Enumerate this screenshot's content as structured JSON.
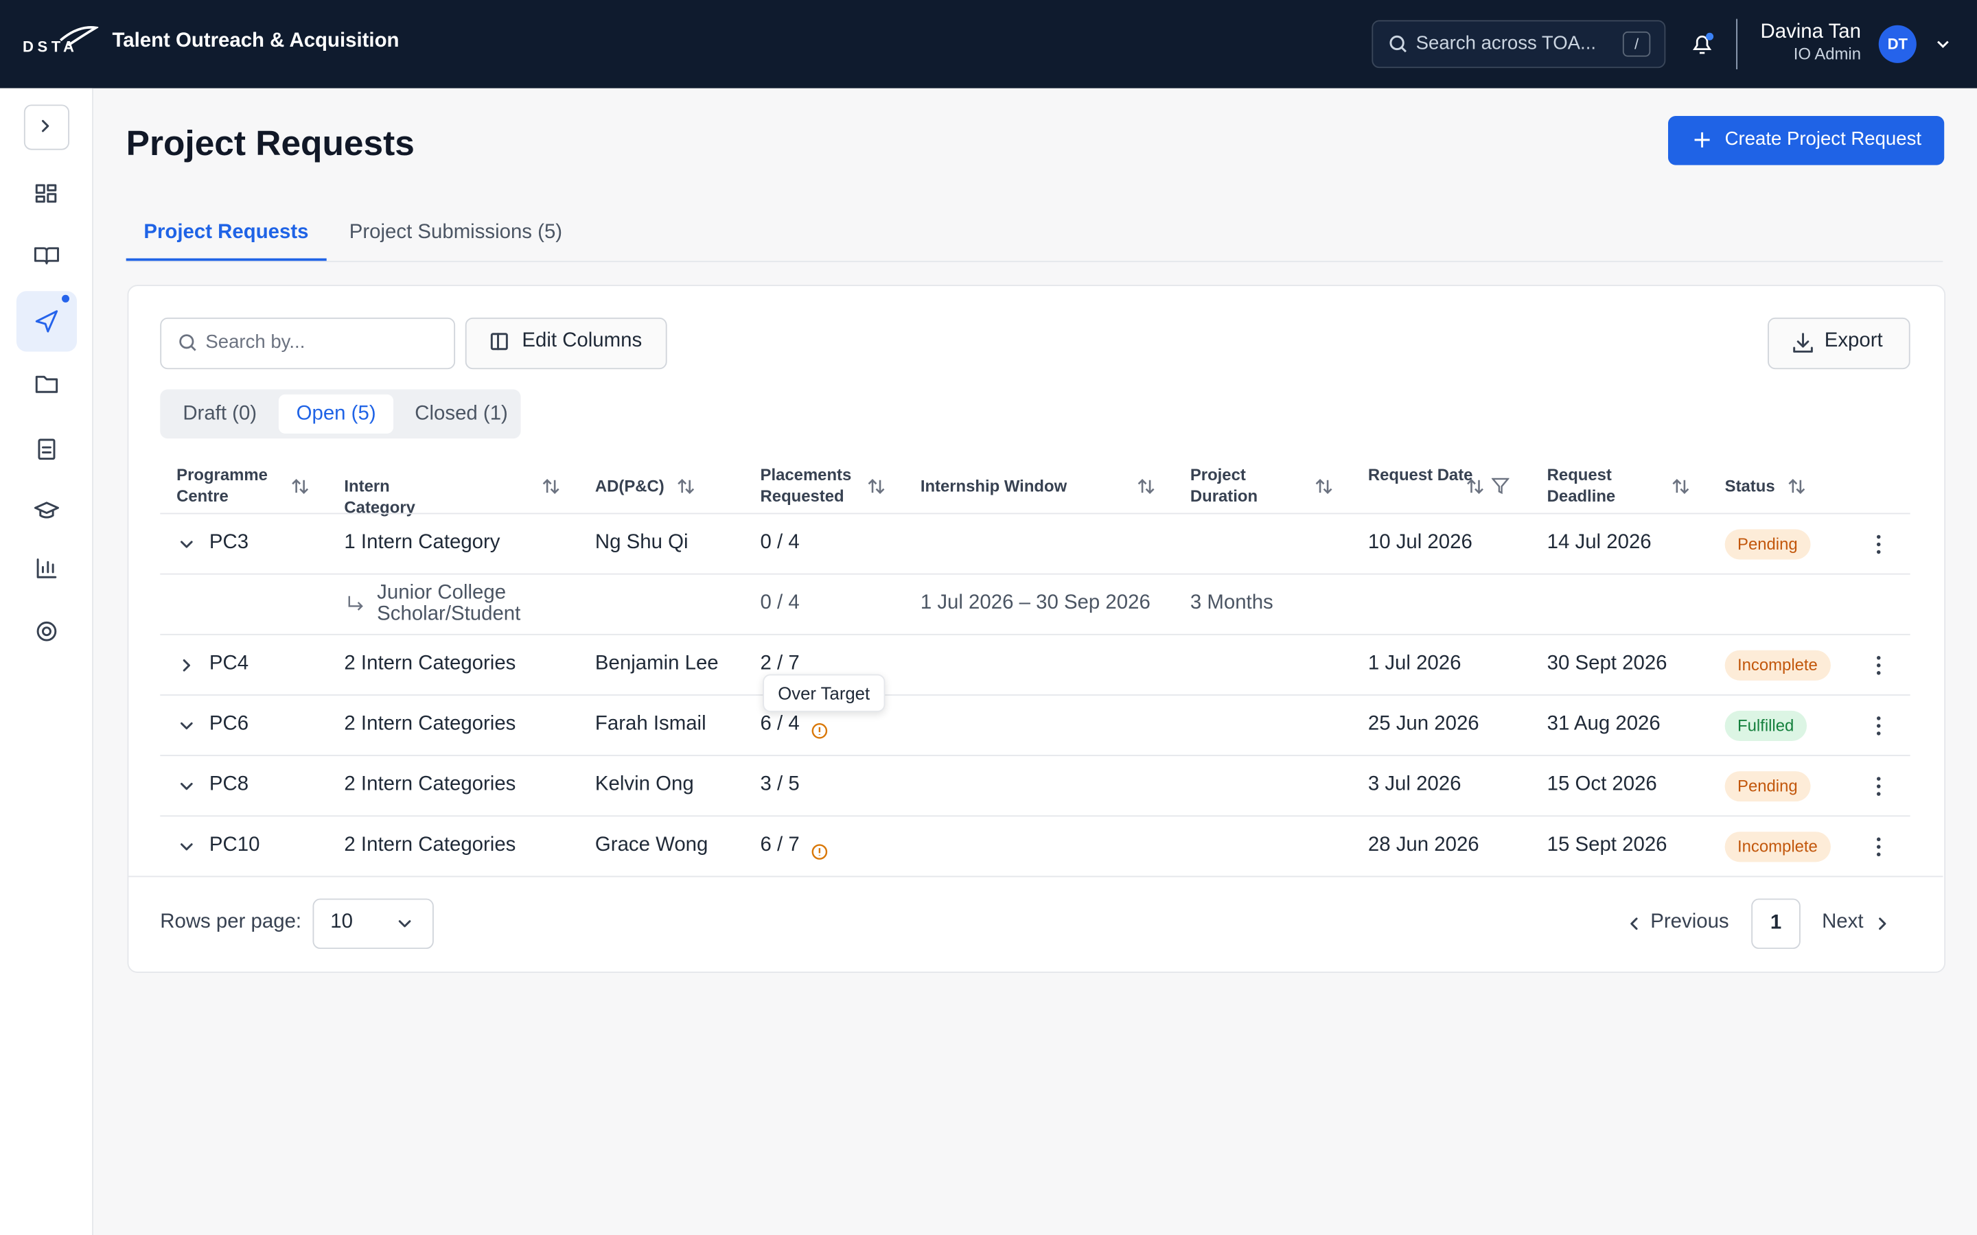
{
  "header": {
    "logo": "DSTA",
    "app_title": "Talent Outreach & Acquisition",
    "search_placeholder": "Search across TOA...",
    "search_shortcut": "/",
    "user_name": "Davina Tan",
    "user_role": "IO Admin",
    "user_initials": "DT"
  },
  "page": {
    "title": "Project Requests",
    "create_button": "Create Project Request"
  },
  "tabs": [
    {
      "label": "Project Requests",
      "active": true
    },
    {
      "label": "Project Submissions (5)",
      "active": false
    }
  ],
  "toolbar": {
    "search_placeholder": "Search by...",
    "edit_columns": "Edit Columns",
    "export": "Export"
  },
  "filters": [
    {
      "label": "Draft (0)",
      "active": false
    },
    {
      "label": "Open (5)",
      "active": true
    },
    {
      "label": "Closed (1)",
      "active": false
    }
  ],
  "table": {
    "columns": [
      {
        "label": "Programme Centre",
        "filter": false
      },
      {
        "label": "Intern Category",
        "filter": false
      },
      {
        "label": "AD(P&C)",
        "filter": false
      },
      {
        "label": "Placements Requested",
        "filter": false
      },
      {
        "label": "Internship Window",
        "filter": false
      },
      {
        "label": "Project Duration",
        "filter": false
      },
      {
        "label": "Request Date",
        "filter": true
      },
      {
        "label": "Request Deadline",
        "filter": false
      },
      {
        "label": "Status",
        "filter": false
      }
    ],
    "rows": [
      {
        "expanded": true,
        "warning": false,
        "cells": [
          "PC3",
          "1 Intern Category",
          "Ng Shu Qi",
          "0 / 4",
          null,
          null,
          "10 Jul 2026",
          "14 Jul 2026"
        ],
        "status": {
          "label": "Pending",
          "tone": "amber"
        },
        "children": [
          {
            "cells": [
              null,
              "Junior College Scholar/Student",
              null,
              "0 / 4",
              "1 Jul 2026 – 30 Sep 2026",
              "3 Months",
              null,
              null
            ]
          }
        ]
      },
      {
        "expanded": false,
        "warning": false,
        "cells": [
          "PC4",
          "2 Intern Categories",
          "Benjamin Lee",
          "2 / 7",
          null,
          null,
          "1 Jul 2026",
          "30 Sept 2026"
        ],
        "status": {
          "label": "Incomplete",
          "tone": "amber"
        }
      },
      {
        "expanded": true,
        "warning": true,
        "cells": [
          "PC6",
          "2 Intern Categories",
          "Farah Ismail",
          "6 / 4",
          null,
          null,
          "25 Jun 2026",
          "31 Aug 2026"
        ],
        "status": {
          "label": "Fulfilled",
          "tone": "green"
        }
      },
      {
        "expanded": true,
        "warning": false,
        "cells": [
          "PC8",
          "2 Intern Categories",
          "Kelvin Ong",
          "3 / 5",
          null,
          null,
          "3 Jul 2026",
          "15 Oct 2026"
        ],
        "status": {
          "label": "Pending",
          "tone": "amber"
        }
      },
      {
        "expanded": true,
        "warning": true,
        "cells": [
          "PC10",
          "2 Intern Categories",
          "Grace Wong",
          "6 / 7",
          null,
          null,
          "28 Jun 2026",
          "15 Sept 2026"
        ],
        "status": {
          "label": "Incomplete",
          "tone": "amber"
        }
      }
    ],
    "tooltip": "Over Target"
  },
  "pagination": {
    "rows_per_page_label": "Rows per page:",
    "rows_per_page": "10",
    "previous": "Previous",
    "page": "1",
    "next": "Next"
  }
}
